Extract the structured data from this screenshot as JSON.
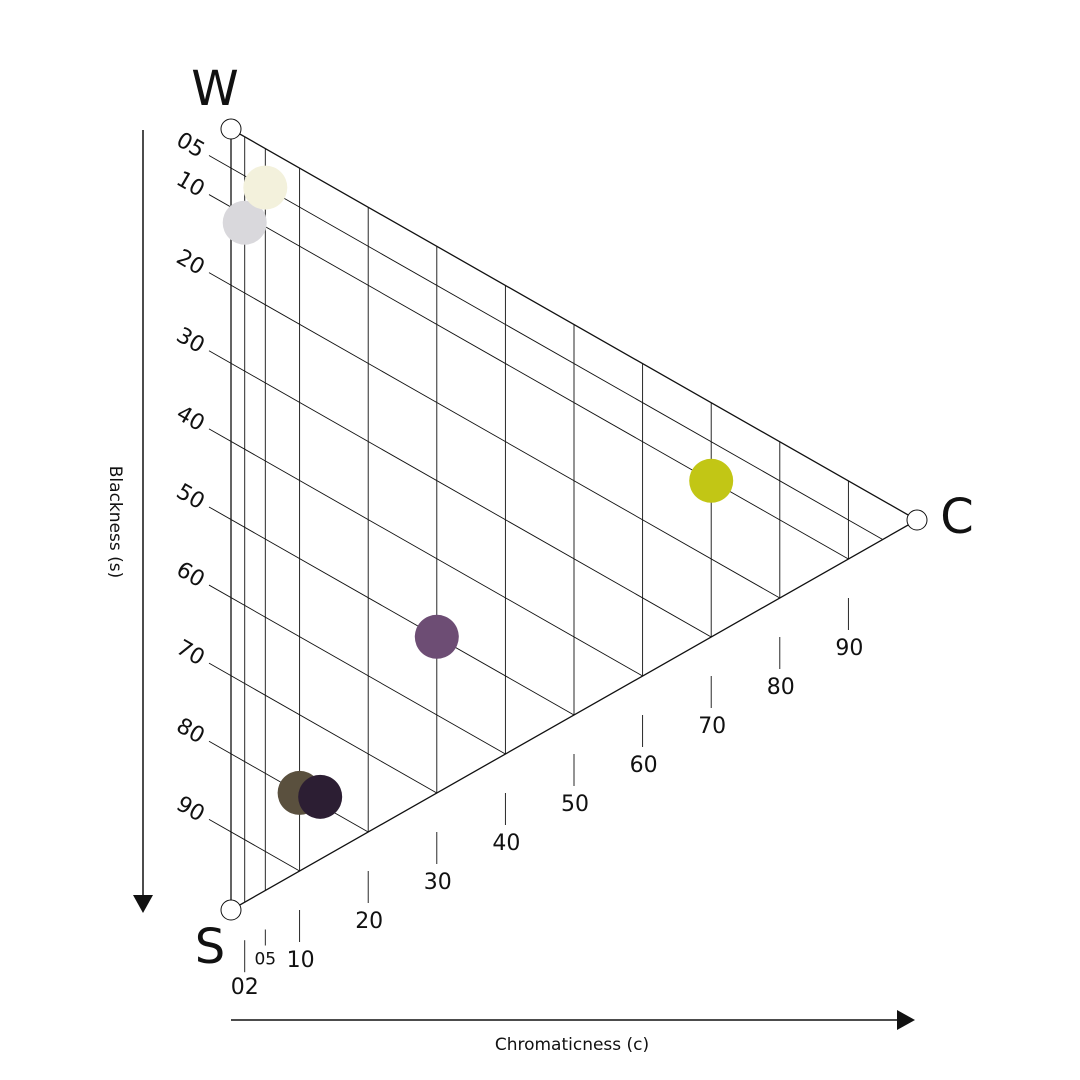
{
  "corners": [
    {
      "label": "W"
    },
    {
      "label": "S"
    },
    {
      "label": "C"
    }
  ],
  "blackness_axis": {
    "title": "Blackness (s)",
    "ticks": [
      {
        "value": 5,
        "label": "05"
      },
      10,
      20,
      30,
      40,
      50,
      60,
      70,
      80,
      90
    ]
  },
  "chromaticness_axis": {
    "title": "Chromaticness (c)",
    "ticks": [
      {
        "value": 2,
        "label": "02"
      },
      {
        "value": 5,
        "label": "05"
      },
      10,
      20,
      30,
      40,
      50,
      60,
      70,
      80,
      90
    ]
  },
  "samples": [
    {
      "blackness": 11,
      "chromaticness": 2,
      "color": "#d9d8dc"
    },
    {
      "blackness": 5,
      "chromaticness": 5,
      "color": "#f3f1dc"
    },
    {
      "blackness": 10,
      "chromaticness": 70,
      "color": "#c2c615"
    },
    {
      "blackness": 50,
      "chromaticness": 30,
      "color": "#6d4d74"
    },
    {
      "blackness": 80,
      "chromaticness": 10,
      "color": "#5a503e"
    },
    {
      "blackness": 79,
      "chromaticness": 13,
      "color": "#2c1e33"
    }
  ]
}
